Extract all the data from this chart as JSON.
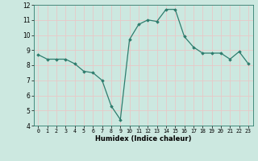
{
  "x": [
    0,
    1,
    2,
    3,
    4,
    5,
    6,
    7,
    8,
    9,
    10,
    11,
    12,
    13,
    14,
    15,
    16,
    17,
    18,
    19,
    20,
    21,
    22,
    23
  ],
  "y": [
    8.7,
    8.4,
    8.4,
    8.4,
    8.1,
    7.6,
    7.5,
    7.0,
    5.3,
    4.4,
    9.7,
    10.7,
    11.0,
    10.9,
    11.7,
    11.7,
    9.9,
    9.2,
    8.8,
    8.8,
    8.8,
    8.4,
    8.9,
    8.1
  ],
  "xlabel": "Humidex (Indice chaleur)",
  "ylim": [
    4,
    12
  ],
  "xlim": [
    -0.5,
    23.5
  ],
  "yticks": [
    4,
    5,
    6,
    7,
    8,
    9,
    10,
    11,
    12
  ],
  "xticks": [
    0,
    1,
    2,
    3,
    4,
    5,
    6,
    7,
    8,
    9,
    10,
    11,
    12,
    13,
    14,
    15,
    16,
    17,
    18,
    19,
    20,
    21,
    22,
    23
  ],
  "xtick_labels": [
    "0",
    "1",
    "2",
    "3",
    "4",
    "5",
    "6",
    "7",
    "8",
    "9",
    "10",
    "11",
    "12",
    "13",
    "14",
    "15",
    "16",
    "17",
    "18",
    "19",
    "20",
    "21",
    "22",
    "23"
  ],
  "line_color": "#2e7d6e",
  "marker": "D",
  "marker_size": 1.8,
  "bg_color": "#cce8e0",
  "grid_color": "#e8c8c8",
  "fig_bg": "#cce8e0",
  "xlabel_fontsize": 6.0,
  "xtick_fontsize": 4.8,
  "ytick_fontsize": 5.5
}
